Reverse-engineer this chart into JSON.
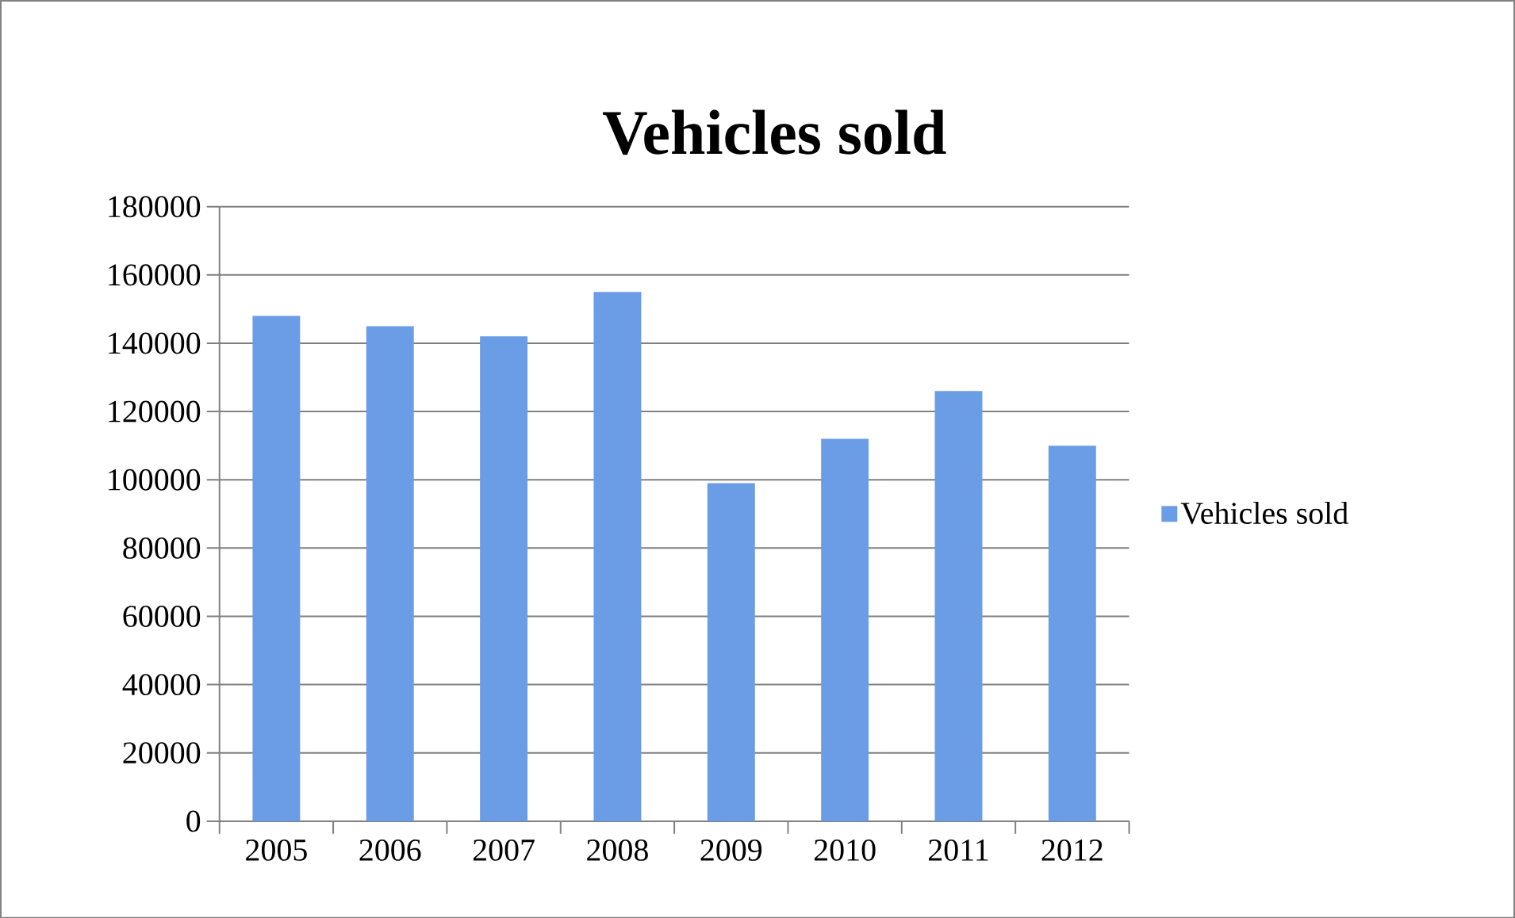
{
  "chart_data": {
    "type": "bar",
    "title": "Vehicles sold",
    "categories": [
      "2005",
      "2006",
      "2007",
      "2008",
      "2009",
      "2010",
      "2011",
      "2012"
    ],
    "series": [
      {
        "name": "Vehicles sold",
        "color": "#6a9de6",
        "values": [
          148000,
          145000,
          142000,
          155000,
          99000,
          112000,
          126000,
          110000
        ]
      }
    ],
    "ylim": [
      0,
      180000
    ],
    "yticks": [
      0,
      20000,
      40000,
      60000,
      80000,
      100000,
      120000,
      140000,
      160000,
      180000
    ],
    "grid": "y",
    "legend": "right"
  }
}
